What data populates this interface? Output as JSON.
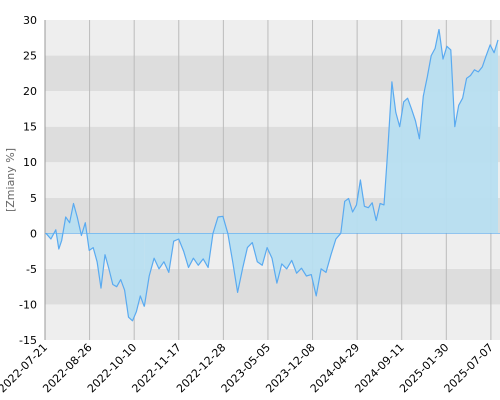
{
  "chart_data": {
    "type": "area",
    "title": "",
    "xlabel": "",
    "ylabel": "[Zmiany %]",
    "ylim": [
      -15,
      30
    ],
    "yticks": [
      -15,
      -10,
      -5,
      0,
      5,
      10,
      15,
      20,
      25,
      30
    ],
    "grid": true,
    "legend": "none",
    "x_tick_labels": [
      "2022-07-21",
      "2022-08-26",
      "2022-10-10",
      "2022-11-17",
      "2022-12-28",
      "2023-05-05",
      "2023-12-08",
      "2024-04-29",
      "2024-09-11",
      "2025-01-30",
      "2025-07-07"
    ],
    "colors": {
      "line": "#5aaaf0",
      "fill_positive": "#b7def0",
      "fill_negative": "#b7def0",
      "band_light": "#eeeeee",
      "band_dark": "#dddddd",
      "grid": "#bbbbbb",
      "axis": "#999999"
    },
    "series": [
      {
        "x": [
          0,
          0.5,
          1,
          1.3,
          1.6,
          2.0,
          2.4,
          2.8,
          3.2,
          3.6,
          4.0,
          4.4,
          4.8,
          5.2,
          5.6,
          6.0,
          6.4,
          6.8,
          7.2,
          7.6,
          8.0,
          8.4,
          8.8,
          9.2,
          9.6,
          10.0
        ],
        "y": [
          0,
          -0.8,
          0.5,
          -2.2,
          -1.0,
          2.3,
          1.5,
          4.2,
          2.2,
          -0.3,
          1.5,
          -2.4,
          -2.0,
          -4.0,
          -7.7,
          -3.0,
          -5.0,
          -7.2,
          -7.5,
          -6.5,
          -8.0,
          -11.8,
          -12.3,
          -11.0,
          -8.8,
          -10.3
        ]
      },
      {
        "x": [
          10.0,
          10.5,
          11.0,
          11.5,
          12.0,
          12.5,
          13.0,
          13.5,
          14.0,
          14.5,
          15.0,
          15.5,
          16.0,
          16.5,
          17.0,
          17.5,
          18.0,
          18.5,
          19.0,
          19.5,
          20.0
        ],
        "y": [
          -10.3,
          -6.0,
          -3.5,
          -5.0,
          -4.0,
          -5.5,
          -1.1,
          -0.8,
          -2.5,
          -4.8,
          -3.5,
          -4.5,
          -3.6,
          -4.8,
          0.0,
          2.3,
          2.4,
          0.0,
          -4.0,
          -8.3,
          -5.0
        ]
      },
      {
        "x": [
          20.0,
          20.5,
          21.0,
          21.5,
          22.0,
          22.5,
          23.0,
          23.5,
          24.0,
          24.5,
          25.0,
          25.5,
          26.0,
          26.5,
          27.0,
          27.5,
          28.0,
          28.5,
          29.0,
          29.5,
          30.0
        ],
        "y": [
          -5.0,
          -2.0,
          -1.3,
          -4.0,
          -4.5,
          -2.0,
          -3.5,
          -7.0,
          -4.3,
          -5.0,
          -3.8,
          -5.6,
          -4.9,
          -6.0,
          -5.8,
          -8.8,
          -5.0,
          -5.5,
          -3.0,
          -0.8,
          0.0
        ]
      },
      {
        "x": [
          30.0,
          30.4,
          30.8,
          31.2,
          31.6,
          32.0,
          32.4,
          32.8,
          33.2,
          33.6,
          34.0,
          34.4,
          34.8,
          35.2,
          35.6,
          36.0,
          36.4,
          36.8,
          37.2,
          37.6,
          38.0,
          38.4,
          38.8,
          39.2,
          39.6,
          40.0
        ],
        "y": [
          0.0,
          4.5,
          4.9,
          3.0,
          4.0,
          7.5,
          3.8,
          3.6,
          4.3,
          1.8,
          4.2,
          4.0,
          12.0,
          21.3,
          17.0,
          15.0,
          18.5,
          19.0,
          17.5,
          15.8,
          13.3,
          19.3,
          22.0,
          25.0,
          26.0,
          28.7
        ]
      },
      {
        "x": [
          40.0,
          40.4,
          40.8,
          41.2,
          41.6,
          42.0,
          42.4,
          42.8,
          43.2,
          43.6,
          44.0,
          44.4,
          44.8,
          45.2,
          45.6,
          46.0
        ],
        "y": [
          28.7,
          24.5,
          26.3,
          25.8,
          15.0,
          18.0,
          19.0,
          21.8,
          22.2,
          23.0,
          22.7,
          23.4,
          25.0,
          26.5,
          25.4,
          27.2
        ]
      }
    ]
  }
}
